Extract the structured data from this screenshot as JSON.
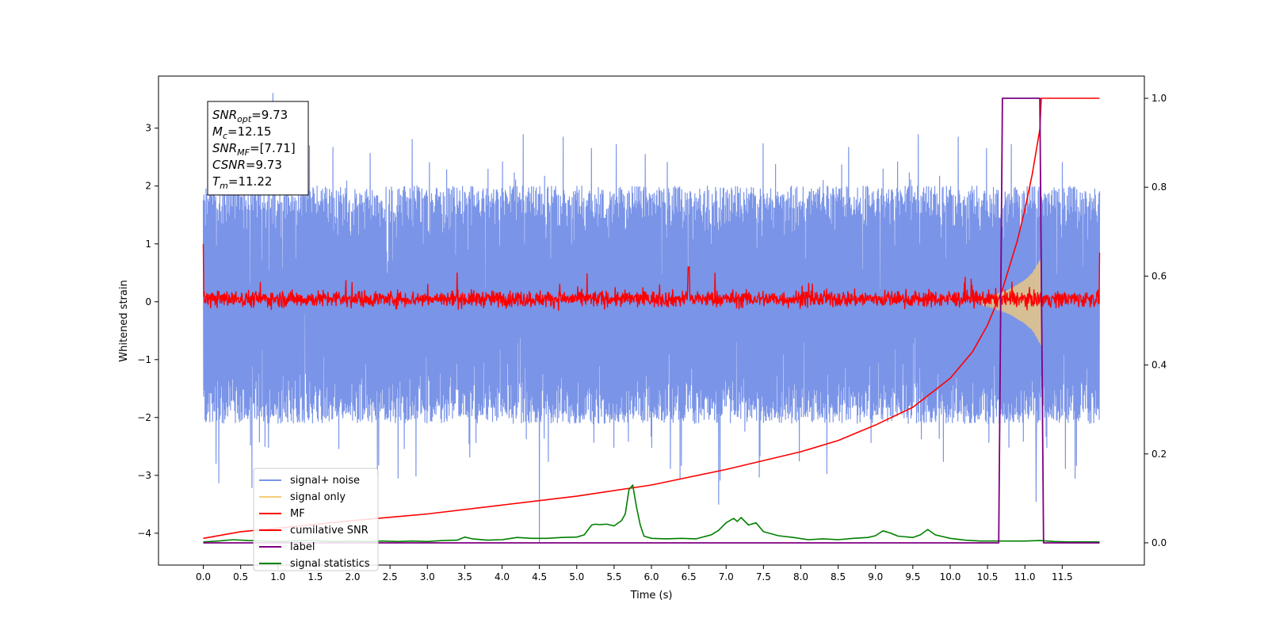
{
  "chart_data": {
    "type": "line",
    "xlabel": "Time (s)",
    "ylabel": "Whitened strain",
    "xlim": [
      -0.6,
      12.6
    ],
    "ylim": [
      -4.55,
      3.9
    ],
    "y2lim": [
      -0.05,
      1.05
    ],
    "x_ticks": [
      "0.0",
      "0.5",
      "1.0",
      "1.5",
      "2.0",
      "2.5",
      "3.0",
      "3.5",
      "4.0",
      "4.5",
      "5.0",
      "5.5",
      "6.0",
      "6.5",
      "7.0",
      "7.5",
      "8.0",
      "8.5",
      "9.0",
      "9.5",
      "10.0",
      "10.5",
      "11.0",
      "11.5"
    ],
    "x_tick_values": [
      0,
      0.5,
      1,
      1.5,
      2,
      2.5,
      3,
      3.5,
      4,
      4.5,
      5,
      5.5,
      6,
      6.5,
      7,
      7.5,
      8,
      8.5,
      9,
      9.5,
      10,
      10.5,
      11,
      11.5
    ],
    "y_ticks": [
      "−4",
      "−3",
      "−2",
      "−1",
      "0",
      "1",
      "2",
      "3"
    ],
    "y_tick_values": [
      -4,
      -3,
      -2,
      -1,
      0,
      1,
      2,
      3
    ],
    "y2_ticks": [
      "0.0",
      "0.2",
      "0.4",
      "0.6",
      "0.8",
      "1.0"
    ],
    "y2_tick_values": [
      0,
      0.2,
      0.4,
      0.6,
      0.8,
      1.0
    ],
    "annotation_lines": [
      {
        "symbol": "SNR",
        "sub": "opt",
        "rest": "=9.73"
      },
      {
        "symbol": "M",
        "sub": "c",
        "rest": "=12.15"
      },
      {
        "symbol": "SNR",
        "sub": "MF",
        "rest": "=[7.71]"
      },
      {
        "symbol": "CSNR",
        "sub": "",
        "rest": "=9.73"
      },
      {
        "symbol": "T",
        "sub": "m",
        "rest": "=11.22"
      }
    ],
    "legend_position": "lower-left",
    "legend": [
      {
        "label": "signal+ noise",
        "color": "#7a94e8"
      },
      {
        "label": "signal only",
        "color": "#f5cd7a"
      },
      {
        "label": "MF",
        "color": "#ff0000"
      },
      {
        "label": "cumilative SNR",
        "color": "#ff0000"
      },
      {
        "label": "label",
        "color": "#7f0080"
      },
      {
        "label": "signal statistics",
        "color": "#008000"
      }
    ],
    "series": [
      {
        "name": "signal+ noise",
        "axis": "left",
        "color": "#7a94e8",
        "band_approx": [
          -2.1,
          2.0
        ],
        "peaks": [
          [
            0.93,
            3.6
          ],
          [
            4.5,
            -4.15
          ],
          [
            11.15,
            -3.45
          ],
          [
            6.9,
            -3.5
          ]
        ]
      },
      {
        "name": "signal only",
        "axis": "left",
        "color": "#f5cd7a",
        "envelope": {
          "x": [
            10.4,
            10.6,
            10.8,
            11.0,
            11.1,
            11.2,
            11.22
          ],
          "amp": [
            0.05,
            0.12,
            0.22,
            0.38,
            0.5,
            0.72,
            0.8
          ]
        }
      },
      {
        "name": "MF",
        "axis": "left",
        "color": "#ff0000",
        "band_approx": [
          -0.15,
          0.25
        ],
        "start": 1.0,
        "end": 0.85
      },
      {
        "name": "cumilative SNR",
        "axis": "right",
        "color": "#ff0000",
        "x": [
          0,
          0.5,
          1,
          2,
          3,
          4,
          5,
          6,
          7,
          8,
          8.5,
          9,
          9.5,
          10,
          10.3,
          10.5,
          10.7,
          10.9,
          11.0,
          11.1,
          11.2,
          11.22,
          12.0
        ],
        "y": [
          0.01,
          0.025,
          0.033,
          0.05,
          0.065,
          0.085,
          0.105,
          0.13,
          0.165,
          0.205,
          0.23,
          0.265,
          0.305,
          0.37,
          0.43,
          0.49,
          0.57,
          0.68,
          0.75,
          0.83,
          0.93,
          1.0,
          1.0
        ]
      },
      {
        "name": "label",
        "axis": "right",
        "color": "#7f0080",
        "x": [
          0,
          10.65,
          10.7,
          11.2,
          11.25,
          12.0
        ],
        "y": [
          0,
          0,
          1,
          1,
          0,
          0
        ]
      },
      {
        "name": "signal statistics",
        "axis": "right",
        "color": "#008000",
        "x": [
          0,
          0.2,
          0.4,
          0.6,
          0.8,
          1.0,
          1.2,
          1.4,
          1.6,
          1.8,
          2.0,
          2.2,
          2.4,
          2.6,
          2.8,
          3.0,
          3.2,
          3.4,
          3.5,
          3.6,
          3.8,
          4.0,
          4.2,
          4.4,
          4.6,
          4.8,
          5.0,
          5.1,
          5.2,
          5.25,
          5.3,
          5.4,
          5.5,
          5.6,
          5.65,
          5.7,
          5.75,
          5.8,
          5.85,
          5.9,
          6.0,
          6.2,
          6.4,
          6.6,
          6.8,
          6.9,
          7.0,
          7.1,
          7.15,
          7.2,
          7.3,
          7.4,
          7.5,
          7.7,
          7.9,
          8.1,
          8.3,
          8.5,
          8.7,
          8.9,
          9.0,
          9.1,
          9.2,
          9.3,
          9.5,
          9.6,
          9.7,
          9.8,
          10.0,
          10.2,
          10.4,
          10.6,
          10.8,
          11.0,
          11.2,
          11.4,
          11.6,
          11.8,
          12.0
        ],
        "y": [
          0.002,
          0.004,
          0.007,
          0.005,
          0.004,
          0.003,
          0.004,
          0.005,
          0.004,
          0.003,
          0.004,
          0.003,
          0.004,
          0.003,
          0.004,
          0.003,
          0.005,
          0.006,
          0.013,
          0.009,
          0.006,
          0.007,
          0.012,
          0.01,
          0.01,
          0.012,
          0.013,
          0.018,
          0.04,
          0.042,
          0.041,
          0.042,
          0.038,
          0.05,
          0.065,
          0.12,
          0.13,
          0.08,
          0.04,
          0.015,
          0.01,
          0.009,
          0.01,
          0.009,
          0.018,
          0.028,
          0.045,
          0.055,
          0.048,
          0.057,
          0.04,
          0.045,
          0.025,
          0.016,
          0.012,
          0.007,
          0.009,
          0.007,
          0.01,
          0.012,
          0.016,
          0.027,
          0.022,
          0.015,
          0.012,
          0.018,
          0.03,
          0.018,
          0.01,
          0.006,
          0.004,
          0.004,
          0.004,
          0.004,
          0.005,
          0.003,
          0.002,
          0.002,
          0.002
        ]
      }
    ]
  }
}
